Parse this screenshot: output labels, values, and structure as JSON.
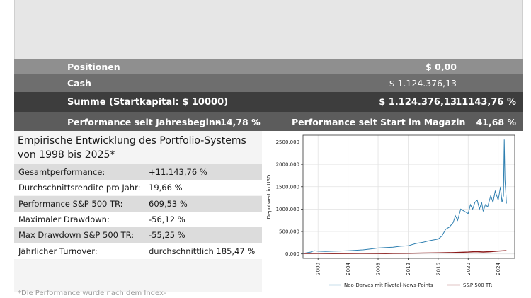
{
  "summary_table": {
    "positions": {
      "label": "Positionen",
      "value": "$ 0,00"
    },
    "cash": {
      "label": "Cash",
      "value": "$ 1.124.376,13"
    },
    "total": {
      "label": "Summe (Startkapital: $ 10000)",
      "value": "$ 1.124.376,13",
      "percent": "11143,76 %"
    },
    "performance": {
      "ytd_label": "Performance seit Jahresbeginn",
      "ytd_value": "-14,78 %",
      "since_start_label": "Performance seit Start im Magazin",
      "since_start_value": "41,68 %"
    }
  },
  "stats": {
    "title": "Empirische Entwicklung des Portfolio-Systems von 1998 bis 2025*",
    "rows": [
      {
        "label": "Gesamtperformance:",
        "value": "+11.143,76 %"
      },
      {
        "label": "Durchschnittsrendite pro Jahr:",
        "value": "19,66 %"
      },
      {
        "label": "Performance S&P 500 TR:",
        "value": "609,53 %"
      },
      {
        "label": "Maximaler Drawdown:",
        "value": "-56,12 %"
      },
      {
        "label": "Max Drawdown S&P 500 TR:",
        "value": "-55,25 %"
      },
      {
        "label": "Jährlicher Turnover:",
        "value": "durchschnittlich 185,47 %"
      }
    ],
    "footnote": "*Die Performance wurde nach dem Index-"
  },
  "chart_data": {
    "type": "line",
    "ylabel": "Depotwert in USD",
    "xlabel": "",
    "ylim": [
      -100000,
      2650000
    ],
    "xlim": [
      1998,
      2026.2
    ],
    "y_ticks": [
      {
        "value": 0,
        "label": "0.000"
      },
      {
        "value": 500000,
        "label": "500.000"
      },
      {
        "value": 1000000,
        "label": "1000.000"
      },
      {
        "value": 1500000,
        "label": "1500.000"
      },
      {
        "value": 2000000,
        "label": "2000.000"
      },
      {
        "value": 2500000,
        "label": "2500.000"
      }
    ],
    "x_ticks": [
      {
        "value": 2000,
        "label": "2000"
      },
      {
        "value": 2004,
        "label": "2004"
      },
      {
        "value": 2008,
        "label": "2008"
      },
      {
        "value": 2012,
        "label": "2012"
      },
      {
        "value": 2016,
        "label": "2016"
      },
      {
        "value": 2020,
        "label": "2020"
      },
      {
        "value": 2024,
        "label": "2024"
      }
    ],
    "grid": true,
    "legend_position": "bottom",
    "series": [
      {
        "name": "Neo-Darvas mit Pivotal-News-Points",
        "color": "#2e7fb0",
        "x": [
          1998,
          1999,
          1999.5,
          2000,
          2001,
          2002,
          2003,
          2004,
          2005,
          2006,
          2007,
          2008,
          2009,
          2010,
          2011,
          2012,
          2013,
          2014,
          2015,
          2016,
          2016.5,
          2017,
          2017.5,
          2018,
          2018.3,
          2018.6,
          2019,
          2019.5,
          2020,
          2020.3,
          2020.6,
          2020.9,
          2021.2,
          2021.5,
          2021.8,
          2022,
          2022.3,
          2022.6,
          2023,
          2023.3,
          2023.6,
          2024,
          2024.3,
          2024.5,
          2024.7,
          2024.8,
          2024.9,
          2025,
          2025.1
        ],
        "y": [
          10000,
          40000,
          70000,
          60000,
          55000,
          60000,
          65000,
          70000,
          80000,
          90000,
          110000,
          130000,
          140000,
          150000,
          170000,
          180000,
          230000,
          260000,
          300000,
          330000,
          400000,
          550000,
          600000,
          700000,
          850000,
          750000,
          1000000,
          950000,
          900000,
          1100000,
          1000000,
          1150000,
          1200000,
          1000000,
          1150000,
          950000,
          1100000,
          1050000,
          1300000,
          1150000,
          1400000,
          1200000,
          1500000,
          1150000,
          1300000,
          2550000,
          1650000,
          1400000,
          1124376
        ]
      },
      {
        "name": "S&P 500 TR",
        "color": "#8b1a1a",
        "x": [
          1998,
          2000,
          2002,
          2004,
          2006,
          2008,
          2009,
          2010,
          2012,
          2014,
          2016,
          2018,
          2020,
          2021,
          2022,
          2023,
          2024,
          2025,
          2025.1
        ],
        "y": [
          10000,
          12000,
          8000,
          11000,
          13000,
          9000,
          8000,
          12000,
          14000,
          20000,
          24000,
          30000,
          40000,
          50000,
          42000,
          50000,
          62000,
          72000,
          70000
        ]
      }
    ]
  }
}
